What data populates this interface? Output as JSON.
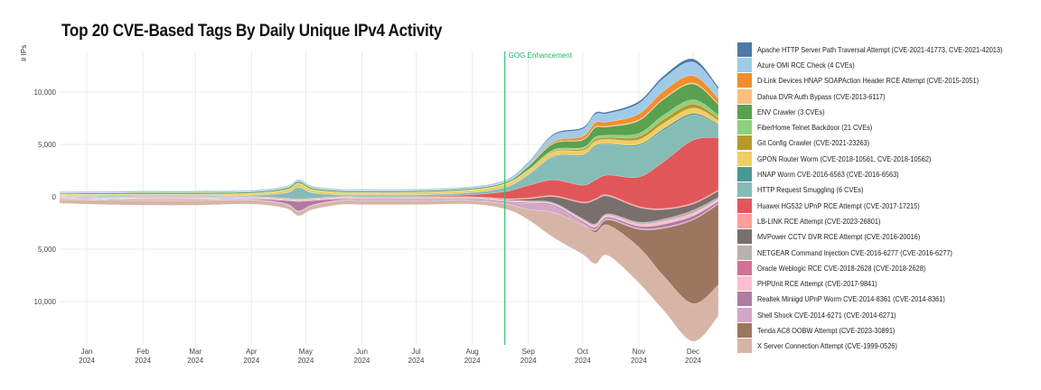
{
  "chart_data": {
    "type": "area",
    "subtype": "streamgraph",
    "title": "Top 20 CVE-Based Tags By Daily Unique IPv4 Activity",
    "xlabel": "",
    "ylabel": "# IPs",
    "y_ticks": [
      {
        "value": 10000,
        "label": "10,000"
      },
      {
        "value": 5000,
        "label": "5,000"
      },
      {
        "value": 0,
        "label": "0"
      },
      {
        "value": -5000,
        "label": "5,000"
      },
      {
        "value": -10000,
        "label": "10,000"
      }
    ],
    "ylim": [
      -14000,
      14000
    ],
    "x_ticks": [
      {
        "date": "2024-01-01",
        "month": "Jan",
        "year": "2024"
      },
      {
        "date": "2024-02-01",
        "month": "Feb",
        "year": "2024"
      },
      {
        "date": "2024-03-01",
        "month": "Mar",
        "year": "2024"
      },
      {
        "date": "2024-04-01",
        "month": "Apr",
        "year": "2024"
      },
      {
        "date": "2024-05-01",
        "month": "May",
        "year": "2024"
      },
      {
        "date": "2024-06-01",
        "month": "Jun",
        "year": "2024"
      },
      {
        "date": "2024-07-01",
        "month": "Jul",
        "year": "2024"
      },
      {
        "date": "2024-08-01",
        "month": "Aug",
        "year": "2024"
      },
      {
        "date": "2024-09-01",
        "month": "Sep",
        "year": "2024"
      },
      {
        "date": "2024-10-01",
        "month": "Oct",
        "year": "2024"
      },
      {
        "date": "2024-11-01",
        "month": "Nov",
        "year": "2024"
      },
      {
        "date": "2024-12-01",
        "month": "Dec",
        "year": "2024"
      }
    ],
    "xlim": [
      "2023-12-17",
      "2024-12-16"
    ],
    "grid": true,
    "legend_position": "right",
    "annotations": [
      {
        "type": "vline",
        "date": "2024-08-19",
        "label": "GOG Enhancement",
        "color": "#2fbf71"
      }
    ],
    "x": [
      "2023-12-17",
      "2024-01-01",
      "2024-02-01",
      "2024-03-01",
      "2024-04-01",
      "2024-04-20",
      "2024-04-27",
      "2024-05-05",
      "2024-05-20",
      "2024-06-01",
      "2024-07-01",
      "2024-08-01",
      "2024-08-20",
      "2024-09-01",
      "2024-09-15",
      "2024-10-01",
      "2024-10-08",
      "2024-10-15",
      "2024-11-01",
      "2024-11-15",
      "2024-12-01",
      "2024-12-15"
    ],
    "baseline": [
      -600,
      -700,
      -800,
      -800,
      -700,
      -1100,
      -1800,
      -1200,
      -750,
      -750,
      -750,
      -700,
      -1200,
      -2200,
      -3900,
      -5500,
      -6400,
      -5600,
      -8200,
      -10900,
      -13800,
      -11400
    ],
    "series": [
      {
        "name": "X Server Connection Attempt (CVE-1999-0526)",
        "color": "#d7b5a6",
        "values": [
          350,
          400,
          450,
          450,
          400,
          400,
          400,
          400,
          400,
          400,
          400,
          350,
          500,
          1000,
          2400,
          2800,
          3000,
          2900,
          3400,
          3300,
          3600,
          3000
        ]
      },
      {
        "name": "Tenda AC8 OOBW Attempt (CVE-2023-30891)",
        "color": "#9d7660",
        "values": [
          0,
          0,
          0,
          0,
          0,
          0,
          0,
          0,
          0,
          0,
          0,
          0,
          0,
          0,
          0,
          0,
          200,
          500,
          1700,
          4600,
          8000,
          7700
        ]
      },
      {
        "name": "Shell Shock CVE-2014-6271 (CVE-2014-6271)",
        "color": "#d4a6c8",
        "values": [
          30,
          30,
          30,
          30,
          30,
          50,
          60,
          50,
          40,
          40,
          40,
          40,
          150,
          550,
          600,
          200,
          150,
          120,
          100,
          100,
          80,
          80
        ]
      },
      {
        "name": "Realtek Miniigd UPnP Worm CVE-2014-8361 (CVE-2014-8361)",
        "color": "#b07aa1",
        "values": [
          60,
          60,
          70,
          70,
          80,
          300,
          900,
          400,
          120,
          100,
          100,
          100,
          100,
          100,
          120,
          150,
          150,
          150,
          200,
          300,
          300,
          200
        ]
      },
      {
        "name": "PHPUnit RCE Attempt (CVE-2017-9841)",
        "color": "#fabfd2",
        "values": [
          40,
          40,
          40,
          40,
          40,
          40,
          40,
          40,
          40,
          40,
          40,
          40,
          50,
          60,
          80,
          120,
          150,
          150,
          200,
          250,
          250,
          150
        ]
      },
      {
        "name": "Oracle Weblogic RCE CVE-2018-2628 (CVE-2018-2628)",
        "color": "#d37295",
        "values": [
          40,
          40,
          40,
          40,
          40,
          40,
          40,
          40,
          40,
          40,
          40,
          40,
          40,
          40,
          40,
          40,
          40,
          40,
          40,
          40,
          40,
          40
        ]
      },
      {
        "name": "NETGEAR Command Injection CVE-2016-6277 (CVE-2016-6277)",
        "color": "#bab0ac",
        "values": [
          40,
          40,
          40,
          40,
          40,
          40,
          40,
          40,
          40,
          40,
          40,
          40,
          50,
          60,
          80,
          100,
          120,
          120,
          150,
          200,
          250,
          200
        ]
      },
      {
        "name": "MVPower CCTV DVR RCE Attempt (CVE-2016-20016)",
        "color": "#79706e",
        "values": [
          0,
          0,
          0,
          0,
          0,
          0,
          0,
          0,
          0,
          0,
          0,
          20,
          60,
          200,
          600,
          1500,
          2300,
          1700,
          1400,
          900,
          600,
          600
        ]
      },
      {
        "name": "LB-LINK RCE Attempt (CVE-2023-26801)",
        "color": "#ff9d9a",
        "values": [
          80,
          80,
          80,
          80,
          80,
          80,
          80,
          80,
          80,
          80,
          80,
          80,
          80,
          80,
          90,
          100,
          100,
          100,
          100,
          100,
          100,
          80
        ]
      },
      {
        "name": "Huawei HG532 UPnP RCE Attempt (CVE-2017-17215)",
        "color": "#e15759",
        "values": [
          20,
          20,
          20,
          20,
          20,
          20,
          20,
          20,
          20,
          20,
          40,
          200,
          700,
          1200,
          1500,
          1600,
          1800,
          1900,
          2800,
          4500,
          6000,
          5000
        ]
      },
      {
        "name": "HTTP Request Smuggling (6 CVEs)",
        "color": "#86bcb6",
        "values": [
          60,
          60,
          80,
          80,
          100,
          500,
          1100,
          500,
          150,
          150,
          150,
          200,
          400,
          1000,
          2200,
          2800,
          3200,
          2900,
          3000,
          3000,
          2400,
          1200
        ]
      },
      {
        "name": "HNAP Worm CVE-2016-6563 (CVE-2016-6563)",
        "color": "#499894",
        "values": [
          30,
          30,
          30,
          30,
          30,
          30,
          30,
          30,
          30,
          30,
          30,
          30,
          40,
          50,
          80,
          100,
          100,
          100,
          120,
          150,
          150,
          100
        ]
      },
      {
        "name": "GPON Router Worm (CVE-2018-10561, CVE-2018-10562)",
        "color": "#f1ce63",
        "values": [
          100,
          120,
          150,
          150,
          150,
          250,
          350,
          250,
          200,
          200,
          200,
          220,
          300,
          350,
          400,
          400,
          400,
          400,
          450,
          500,
          500,
          350
        ]
      },
      {
        "name": "Git Config Crawler (CVE-2021-23263)",
        "color": "#b6992d",
        "values": [
          20,
          20,
          20,
          20,
          20,
          20,
          20,
          20,
          20,
          20,
          20,
          20,
          20,
          50,
          100,
          150,
          200,
          200,
          300,
          400,
          400,
          250
        ]
      },
      {
        "name": "FiberHome Telnet Backdoor (21 CVEs)",
        "color": "#8cd17d",
        "values": [
          20,
          20,
          20,
          20,
          20,
          20,
          20,
          20,
          20,
          20,
          20,
          20,
          30,
          60,
          100,
          150,
          200,
          200,
          300,
          400,
          400,
          250
        ]
      },
      {
        "name": "ENV Crawler (3 CVEs)",
        "color": "#59a14f",
        "values": [
          80,
          100,
          120,
          120,
          120,
          140,
          160,
          140,
          120,
          120,
          120,
          120,
          120,
          300,
          600,
          700,
          900,
          800,
          1200,
          1500,
          1500,
          1000
        ]
      },
      {
        "name": "Dahua DVR Auth Bypass (CVE-2013-6117)",
        "color": "#ffbe7d",
        "values": [
          20,
          20,
          20,
          20,
          20,
          20,
          20,
          20,
          20,
          20,
          20,
          20,
          20,
          20,
          40,
          60,
          80,
          80,
          100,
          100,
          100,
          80
        ]
      },
      {
        "name": "D-Link Devices HNAP SOAPAction Header RCE Attempt (CVE-2015-2051)",
        "color": "#f28e2b",
        "values": [
          0,
          0,
          0,
          0,
          0,
          0,
          0,
          0,
          0,
          0,
          0,
          0,
          20,
          50,
          150,
          300,
          400,
          400,
          550,
          700,
          700,
          500
        ]
      },
      {
        "name": "Azure OMI RCE Check (4 CVEs)",
        "color": "#a0cbe8",
        "values": [
          100,
          120,
          130,
          130,
          120,
          130,
          150,
          130,
          120,
          120,
          120,
          120,
          150,
          300,
          600,
          700,
          800,
          800,
          1000,
          1200,
          1300,
          900
        ]
      },
      {
        "name": "Apache HTTP Server Path Traversal Attempt (CVE-2021-41773, CVE-2021-42013)",
        "color": "#4e79a7",
        "values": [
          20,
          20,
          20,
          20,
          20,
          20,
          20,
          20,
          20,
          20,
          20,
          20,
          30,
          60,
          120,
          150,
          150,
          150,
          200,
          250,
          300,
          200
        ]
      }
    ]
  },
  "legend": {
    "items": [
      {
        "label": "Apache HTTP Server Path Traversal Attempt (CVE-2021-41773, CVE-2021-42013)",
        "color": "#4e79a7"
      },
      {
        "label": "Azure OMI RCE Check (4 CVEs)",
        "color": "#a0cbe8"
      },
      {
        "label": "D-Link Devices HNAP SOAPAction Header RCE Attempt (CVE-2015-2051)",
        "color": "#f28e2b"
      },
      {
        "label": "Dahua DVR Auth Bypass (CVE-2013-6117)",
        "color": "#ffbe7d"
      },
      {
        "label": "ENV Crawler (3 CVEs)",
        "color": "#59a14f"
      },
      {
        "label": "FiberHome Telnet Backdoor (21 CVEs)",
        "color": "#8cd17d"
      },
      {
        "label": "Git Config Crawler (CVE-2021-23263)",
        "color": "#b6992d"
      },
      {
        "label": "GPON Router Worm (CVE-2018-10561, CVE-2018-10562)",
        "color": "#f1ce63"
      },
      {
        "label": "HNAP Worm CVE-2016-6563 (CVE-2016-6563)",
        "color": "#499894"
      },
      {
        "label": "HTTP Request Smuggling (6 CVEs)",
        "color": "#86bcb6"
      },
      {
        "label": "Huawei HG532 UPnP RCE Attempt (CVE-2017-17215)",
        "color": "#e15759"
      },
      {
        "label": "LB-LINK RCE Attempt (CVE-2023-26801)",
        "color": "#ff9d9a"
      },
      {
        "label": "MVPower CCTV DVR RCE Attempt (CVE-2016-20016)",
        "color": "#79706e"
      },
      {
        "label": "NETGEAR Command Injection CVE-2016-6277 (CVE-2016-6277)",
        "color": "#bab0ac"
      },
      {
        "label": "Oracle Weblogic RCE CVE-2018-2628 (CVE-2018-2628)",
        "color": "#d37295"
      },
      {
        "label": "PHPUnit RCE Attempt (CVE-2017-9841)",
        "color": "#fabfd2"
      },
      {
        "label": "Realtek Miniigd UPnP Worm CVE-2014-8361 (CVE-2014-8361)",
        "color": "#b07aa1"
      },
      {
        "label": "Shell Shock CVE-2014-6271 (CVE-2014-6271)",
        "color": "#d4a6c8"
      },
      {
        "label": "Tenda AC8 OOBW Attempt (CVE-2023-30891)",
        "color": "#9d7660"
      },
      {
        "label": "X Server Connection Attempt (CVE-1999-0526)",
        "color": "#d7b5a6"
      }
    ]
  }
}
